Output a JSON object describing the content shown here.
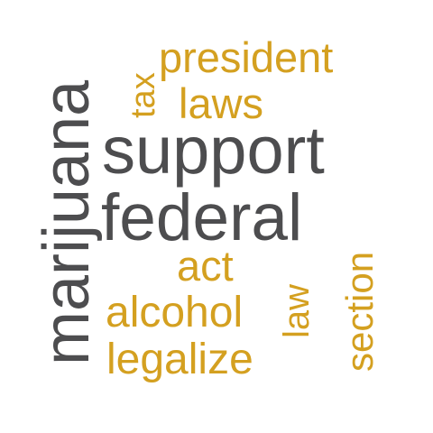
{
  "colors": {
    "primary": "#4d4d4f",
    "secondary": "#d4a020"
  },
  "words": {
    "marijuana": "marijuana",
    "support": "support",
    "federal": "federal",
    "president": "president",
    "tax": "tax",
    "laws": "laws",
    "act": "act",
    "alcohol": "alcohol",
    "law": "law",
    "section": "section",
    "legalize": "legalize"
  }
}
